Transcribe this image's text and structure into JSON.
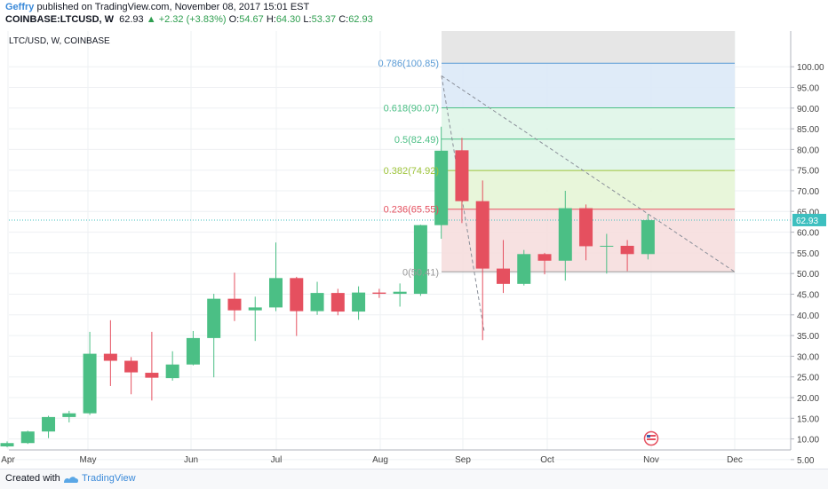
{
  "header": {
    "author": "Geffry",
    "published_text": "published on TradingView.com, November 08, 2017 15:01 EST",
    "symbol_text": "COINBASE:LTCUSD, W",
    "last": "62.93",
    "change_arrow": "▲",
    "change": "+2.32 (+3.83%)",
    "o_label": "O:",
    "o": "54.67",
    "h_label": "H:",
    "h": "64.30",
    "l_label": "L:",
    "l": "53.37",
    "c_label": "C:",
    "c": "62.93"
  },
  "footer": {
    "created_with": "Created with",
    "brand": "TradingView"
  },
  "colors": {
    "up": "#4bbf85",
    "down": "#e5505f",
    "grid": "#eef0f3",
    "axis_text": "#444444",
    "price_line": "#3dbfbf"
  },
  "chart_data": {
    "type": "candlestick",
    "title": "LTC/USD, W, COINBASE",
    "ylim": [
      0,
      103
    ],
    "y_ticks": [
      5,
      10,
      15,
      20,
      25,
      30,
      35,
      40,
      45,
      50,
      55,
      60,
      65,
      70,
      75,
      80,
      85,
      90,
      95,
      100
    ],
    "x_ticks": [
      "Apr",
      "May",
      "Jun",
      "Jul",
      "Aug",
      "Sep",
      "Oct",
      "Nov",
      "Dec"
    ],
    "current_price": 62.93,
    "current_price_label": "62.93",
    "candles": [
      {
        "o": 8.2,
        "h": 9.4,
        "l": 8.0,
        "c": 9.0
      },
      {
        "o": 9.0,
        "h": 12.0,
        "l": 8.8,
        "c": 11.8
      },
      {
        "o": 11.8,
        "h": 15.6,
        "l": 10.2,
        "c": 15.3
      },
      {
        "o": 15.3,
        "h": 16.8,
        "l": 14.0,
        "c": 16.2
      },
      {
        "o": 16.2,
        "h": 35.9,
        "l": 15.8,
        "c": 30.6
      },
      {
        "o": 30.6,
        "h": 38.7,
        "l": 22.8,
        "c": 28.9
      },
      {
        "o": 28.9,
        "h": 29.8,
        "l": 20.8,
        "c": 26.1
      },
      {
        "o": 26.0,
        "h": 35.9,
        "l": 19.3,
        "c": 24.8
      },
      {
        "o": 24.7,
        "h": 31.2,
        "l": 24.1,
        "c": 28.0
      },
      {
        "o": 28.0,
        "h": 36.1,
        "l": 27.8,
        "c": 34.4
      },
      {
        "o": 34.4,
        "h": 45.1,
        "l": 24.9,
        "c": 43.9
      },
      {
        "o": 43.9,
        "h": 50.2,
        "l": 38.5,
        "c": 41.1
      },
      {
        "o": 41.1,
        "h": 44.4,
        "l": 33.7,
        "c": 41.8
      },
      {
        "o": 41.8,
        "h": 57.5,
        "l": 40.9,
        "c": 48.9
      },
      {
        "o": 48.9,
        "h": 49.2,
        "l": 34.9,
        "c": 40.9
      },
      {
        "o": 40.9,
        "h": 48.0,
        "l": 40.0,
        "c": 45.3
      },
      {
        "o": 45.3,
        "h": 46.3,
        "l": 39.9,
        "c": 40.8
      },
      {
        "o": 40.8,
        "h": 46.9,
        "l": 38.8,
        "c": 45.4
      },
      {
        "o": 45.4,
        "h": 46.3,
        "l": 44.1,
        "c": 45.1
      },
      {
        "o": 45.1,
        "h": 47.6,
        "l": 42.0,
        "c": 45.6
      },
      {
        "o": 45.1,
        "h": 61.8,
        "l": 44.6,
        "c": 61.7
      },
      {
        "o": 61.7,
        "h": 85.5,
        "l": 58.4,
        "c": 79.7
      },
      {
        "o": 79.8,
        "h": 82.8,
        "l": 62.2,
        "c": 67.5
      },
      {
        "o": 67.5,
        "h": 72.5,
        "l": 33.9,
        "c": 51.2
      },
      {
        "o": 51.2,
        "h": 58.1,
        "l": 45.3,
        "c": 47.5
      },
      {
        "o": 47.5,
        "h": 55.7,
        "l": 47.1,
        "c": 54.7
      },
      {
        "o": 54.7,
        "h": 55.0,
        "l": 49.8,
        "c": 53.1
      },
      {
        "o": 53.1,
        "h": 70.0,
        "l": 48.3,
        "c": 65.8
      },
      {
        "o": 65.8,
        "h": 66.7,
        "l": 53.2,
        "c": 56.6
      },
      {
        "o": 56.6,
        "h": 59.6,
        "l": 50.0,
        "c": 56.7
      },
      {
        "o": 56.7,
        "h": 58.1,
        "l": 50.6,
        "c": 54.7
      },
      {
        "o": 54.7,
        "h": 64.3,
        "l": 53.4,
        "c": 62.9
      }
    ],
    "fibonacci": {
      "labels": [
        "0.786(100.85)",
        "0.618(90.07)",
        "0.5(82.49)",
        "0.382(74.92)",
        "0.236(65.55)",
        "0(50.41)"
      ],
      "levels": [
        100.85,
        90.07,
        82.49,
        74.92,
        65.55,
        50.41
      ],
      "level_colors": [
        "#5a9bd5",
        "#4bbf85",
        "#4bbf85",
        "#9ec43a",
        "#e5505f",
        "#999999"
      ],
      "zone_colors": [
        "#dbe9f7",
        "#dff5e8",
        "#e6f5d6",
        "#f6dede"
      ]
    }
  }
}
